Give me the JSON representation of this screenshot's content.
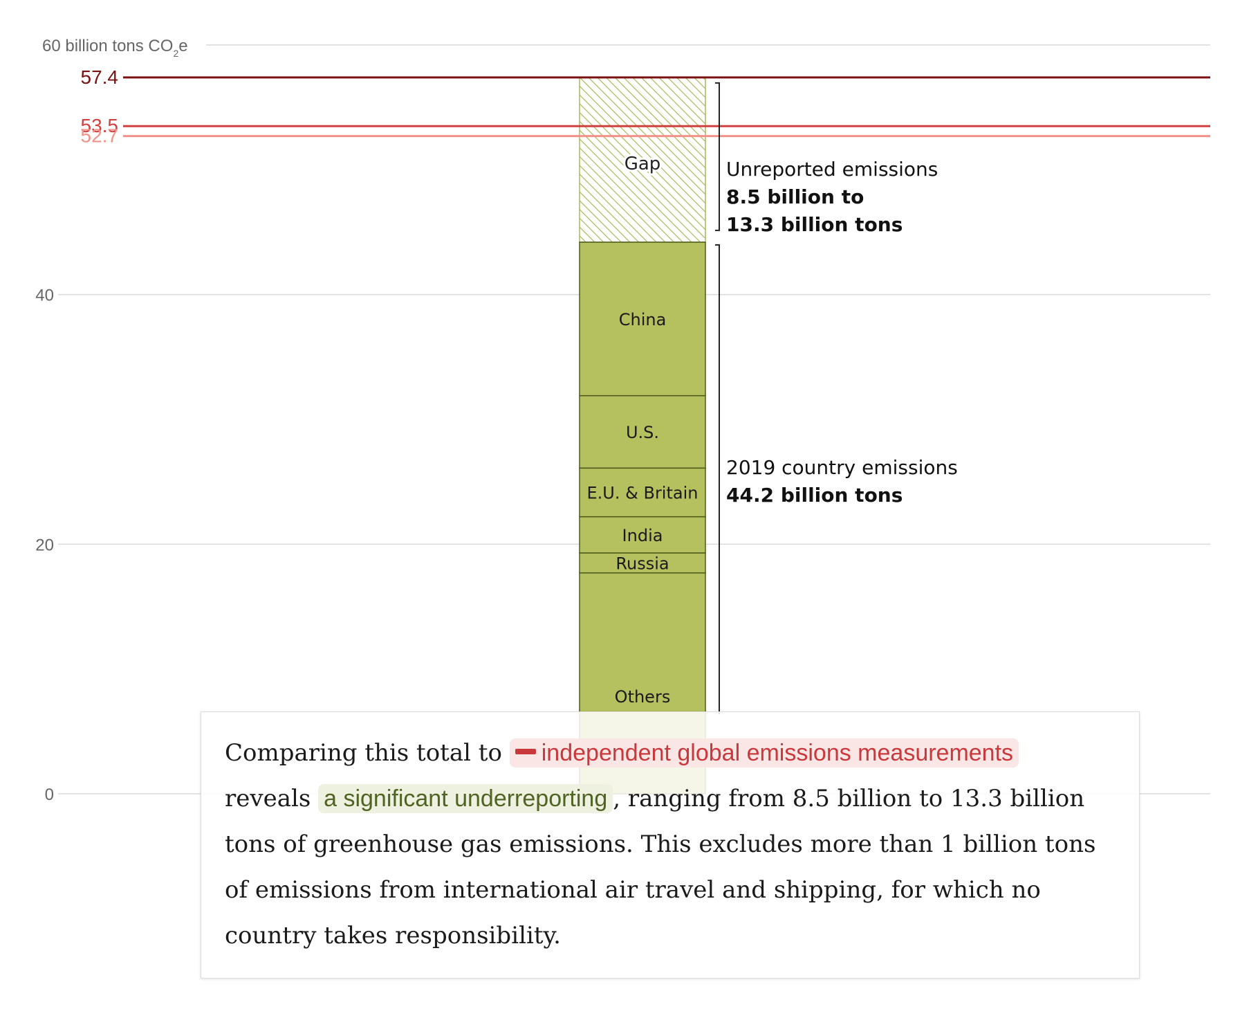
{
  "chart_data": {
    "type": "bar",
    "y_axis_unit_label": "60 billion tons CO",
    "y_axis_unit_sub": "2",
    "y_axis_unit_suffix": "e",
    "ylim": [
      0,
      60
    ],
    "y_ticks": [
      {
        "value": 0,
        "label": "0"
      },
      {
        "value": 20,
        "label": "20"
      },
      {
        "value": 40,
        "label": "40"
      }
    ],
    "reference_lines": [
      {
        "value": 57.4,
        "label": "57.4",
        "color": "#7a1010"
      },
      {
        "value": 53.5,
        "label": "53.5",
        "color": "#d0403f"
      },
      {
        "value": 52.7,
        "label": "52.7",
        "color": "#f0928a"
      }
    ],
    "segments": [
      {
        "name": "Others",
        "start": 0,
        "end": 17.7
      },
      {
        "name": "Russia",
        "start": 17.7,
        "end": 19.3
      },
      {
        "name": "India",
        "start": 19.3,
        "end": 22.2
      },
      {
        "name": "E.U. & Britain",
        "start": 22.2,
        "end": 26.1
      },
      {
        "name": "U.S.",
        "start": 26.1,
        "end": 31.9
      },
      {
        "name": "China",
        "start": 31.9,
        "end": 44.2
      }
    ],
    "gap": {
      "name": "Gap",
      "start": 44.2,
      "end": 57.4
    },
    "bar_color": "#b5c05e",
    "bar_stroke": "#4d5a1c",
    "gap_stroke": "#a8b85a",
    "annotations": {
      "unreported": {
        "line1": "Unreported emissions",
        "line2": "8.5 billion to",
        "line3": "13.3 billion tons"
      },
      "country": {
        "line1": "2019 country emissions",
        "line2": "44.2 billion tons"
      }
    }
  },
  "text": {
    "part1": "Comparing this total to ",
    "hl_red": "independent global emissions measurements",
    "part2": "reveals ",
    "hl_green": "a significant underreporting",
    "part3": ", ranging from 8.5 billion to 13.3 billion tons of greenhouse gas emissions. This excludes more than 1 billion tons of emissions from international air travel and shipping, for which no country takes responsibility."
  }
}
